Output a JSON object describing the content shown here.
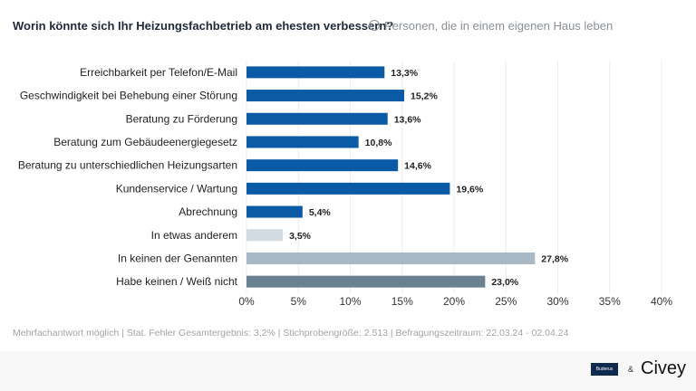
{
  "header": {
    "title": "Worin könnte sich Ihr Heizungsfachbetrieb am ehesten verbessern?",
    "subtitle": "Personen, die in einem eigenen Haus leben"
  },
  "chart_data": {
    "type": "bar",
    "orientation": "horizontal",
    "categories": [
      "Erreichbarkeit per Telefon/E-Mail",
      "Geschwindigkeit bei Behebung einer Störung",
      "Beratung zu Förderung",
      "Beratung zum Gebäudeenergiegesetz",
      "Beratung zu unterschiedlichen Heizungsarten",
      "Kundenservice / Wartung",
      "Abrechnung",
      "In etwas anderem",
      "In keinen der Genannten",
      "Habe keinen / Weiß nicht"
    ],
    "values": [
      13.3,
      15.2,
      13.6,
      10.8,
      14.6,
      19.6,
      5.4,
      3.5,
      27.8,
      23.0
    ],
    "labels": [
      "13,3%",
      "15,2%",
      "13,6%",
      "10,8%",
      "14,6%",
      "19,6%",
      "5,4%",
      "3,5%",
      "27,8%",
      "23,0%"
    ],
    "colors": [
      "#0b5aa6",
      "#0b5aa6",
      "#0b5aa6",
      "#0b5aa6",
      "#0b5aa6",
      "#0b5aa6",
      "#0b5aa6",
      "#d2dbe1",
      "#a8b8c4",
      "#6a8191"
    ],
    "xlim": [
      0,
      40
    ],
    "ticks": [
      0,
      5,
      10,
      15,
      20,
      25,
      30,
      35,
      40
    ],
    "tick_labels": [
      "0%",
      "5%",
      "10%",
      "15%",
      "20%",
      "25%",
      "30%",
      "35%",
      "40%"
    ],
    "grid": true
  },
  "footer": {
    "note": "Mehrfachantwort möglich | Stat. Fehler Gesamtergebnis: 3,2% | Stichprobengröße: 2.513 | Befragungszeitraum: 22.03.24 - 02.04.24",
    "partner": "Buderus",
    "amp": "&",
    "brand": "Civey"
  }
}
